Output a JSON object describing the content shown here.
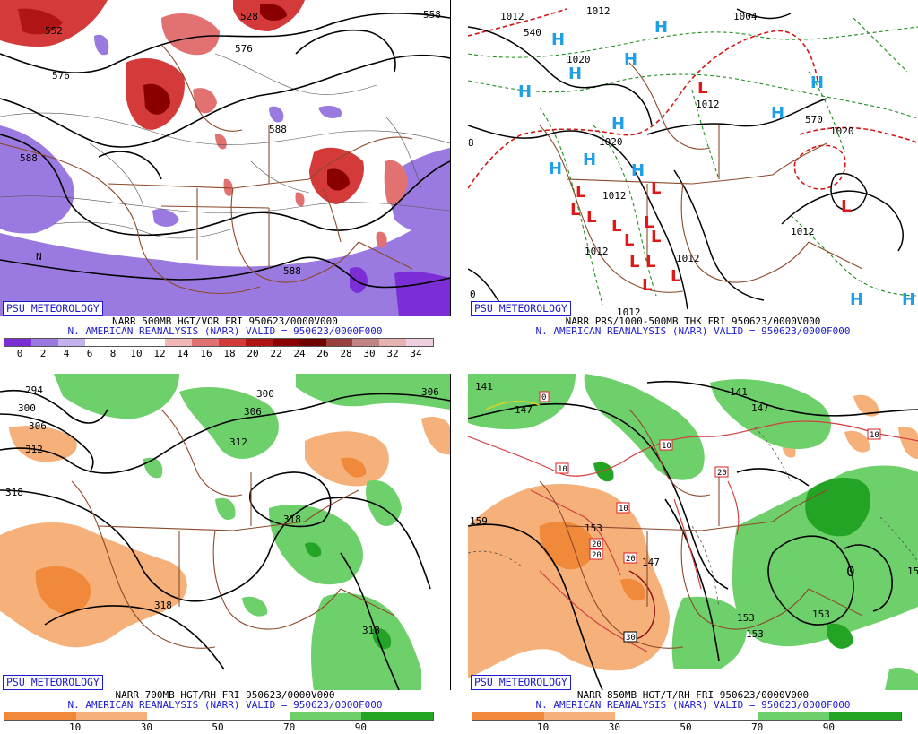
{
  "panels": [
    {
      "badge": "PSU METEOROLOGY",
      "caption1": "NARR 500MB HGT/VOR FRI 950623/0000V000",
      "caption2": "N. AMERICAN REANALYSIS (NARR) VALID = 950623/0000F000",
      "scale": {
        "colors": [
          "#7b2ed6",
          "#9a7ae0",
          "#c4b2ec",
          "#ffffff",
          "#ffffff",
          "#ffffff",
          "#f2b8b8",
          "#e27272",
          "#d43a3a",
          "#b11414",
          "#8a0000",
          "#6e0000",
          "#9a3f3f",
          "#c28383",
          "#e6b3b3",
          "#f0d0e0"
        ],
        "ticks": [
          "0",
          "2",
          "4",
          "6",
          "8",
          "10",
          "12",
          "14",
          "16",
          "18",
          "20",
          "22",
          "24",
          "26",
          "28",
          "30",
          "32",
          "34"
        ]
      },
      "contour_labels": [
        "552",
        "576",
        "576",
        "588",
        "588",
        "588",
        "558",
        "528"
      ],
      "region_labels": [
        "N"
      ]
    },
    {
      "badge": "PSU METEOROLOGY",
      "caption1": "NARR PRS/1000-500MB THK FRI 950623/0000V000",
      "caption2": "N. AMERICAN REANALYSIS (NARR) VALID = 950623/0000F000",
      "contour_labels": [
        "1012",
        "1012",
        "1004",
        "540",
        "1020",
        "1012",
        "1020",
        "1012",
        "1012",
        "1012",
        "1012",
        "1020",
        "1012",
        "8",
        "0",
        "570"
      ],
      "high_symbol": "H",
      "low_symbol": "L"
    },
    {
      "badge": "PSU METEOROLOGY",
      "caption1": "NARR 700MB HGT/RH FRI 950623/0000V000",
      "caption2": "N. AMERICAN REANALYSIS (NARR) VALID = 950623/0000F000",
      "scale": {
        "colors": [
          "#f08a3a",
          "#f6b07a",
          "#ffffff",
          "#ffffff",
          "#6ed06a",
          "#24a424"
        ],
        "ticks": [
          "10",
          "30",
          "50",
          "70",
          "90"
        ]
      },
      "contour_labels": [
        "294",
        "300",
        "306",
        "312",
        "300",
        "306",
        "306",
        "312",
        "318",
        "318",
        "318",
        "318"
      ]
    },
    {
      "badge": "PSU METEOROLOGY",
      "caption1": "NARR 850MB HGT/T/RH FRI 950623/0000V000",
      "caption2": "N. AMERICAN REANALYSIS (NARR) VALID = 950623/0000F000",
      "scale": {
        "colors": [
          "#f08a3a",
          "#f6b07a",
          "#ffffff",
          "#ffffff",
          "#6ed06a",
          "#24a424"
        ],
        "ticks": [
          "10",
          "30",
          "50",
          "70",
          "90"
        ]
      },
      "contour_labels": [
        "141",
        "147",
        "141",
        "147",
        "159",
        "153",
        "147",
        "153",
        "153",
        "153",
        "0",
        "15"
      ],
      "temp_labels": [
        "0",
        "10",
        "10",
        "10",
        "10",
        "20",
        "20",
        "20",
        "20",
        "30"
      ]
    }
  ]
}
